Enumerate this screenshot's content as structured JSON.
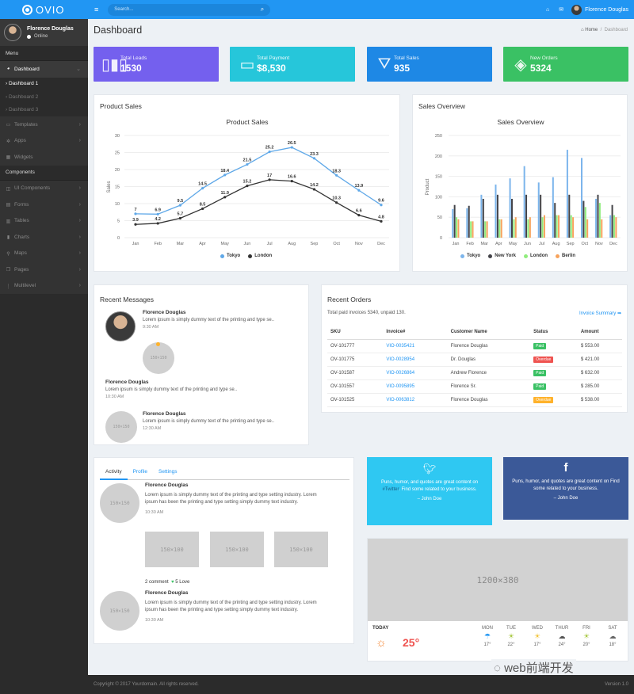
{
  "app": {
    "name": "OVIO"
  },
  "user": {
    "name": "Florence Douglas",
    "status": "Online"
  },
  "sidebar": {
    "menu_label": "Menu",
    "dashboard": "Dashboard",
    "subs": [
      "Dashboard 1",
      "Dashboard 2",
      "Dashboard 3"
    ],
    "items1": [
      "Templates",
      "Apps",
      "Widgets"
    ],
    "components_label": "Components",
    "items2": [
      "UI Components",
      "Forms",
      "Tables",
      "Charts",
      "Maps",
      "Pages",
      "Multilevel"
    ]
  },
  "topbar": {
    "search_placeholder": "Search...",
    "user": "Florence Douglas"
  },
  "page": {
    "title": "Dashboard",
    "crumb_home": "Home",
    "crumb_current": "Dashboard"
  },
  "stats": [
    {
      "label": "Total Leads",
      "value": "1530",
      "color": "#7460ee"
    },
    {
      "label": "Total Payment",
      "value": "$8,530",
      "color": "#26c6da"
    },
    {
      "label": "Total Sales",
      "value": "935",
      "color": "#1e88e5"
    },
    {
      "label": "New Orders",
      "value": "5324",
      "color": "#3ac164"
    }
  ],
  "product_sales": {
    "card_title": "Product Sales"
  },
  "sales_overview": {
    "card_title": "Sales Overview"
  },
  "chart_data": [
    {
      "type": "line",
      "title": "Product Sales",
      "ylabel": "Sales",
      "categories": [
        "Jan",
        "Feb",
        "Mar",
        "Apr",
        "May",
        "Jun",
        "Jul",
        "Aug",
        "Sep",
        "Oct",
        "Nov",
        "Dec"
      ],
      "ylim": [
        0,
        30
      ],
      "yticks": [
        "0",
        "5",
        "10",
        "15",
        "20",
        "25",
        "30"
      ],
      "series": [
        {
          "name": "Tokyo",
          "color": "#5fa8e8",
          "values": [
            7,
            6.9,
            9.5,
            14.5,
            18.4,
            21.5,
            25.2,
            26.5,
            23.3,
            18.3,
            13.9,
            9.6
          ],
          "labels": [
            "7",
            "6.9",
            "9.5",
            "14.5",
            "18.4",
            "21.5",
            "25.2",
            "26.5",
            "23.3",
            "18.3",
            "13.9",
            "9.6"
          ]
        },
        {
          "name": "London",
          "color": "#333333",
          "values": [
            3.9,
            4.2,
            5.7,
            8.5,
            11.9,
            15.2,
            17,
            16.6,
            14.2,
            10.3,
            6.6,
            4.8
          ],
          "labels": [
            "3.9",
            "4.2",
            "5.7",
            "8.5",
            "11.9",
            "15.2",
            "17",
            "16.6",
            "14.2",
            "10.3",
            "6.6",
            "4.8"
          ]
        }
      ]
    },
    {
      "type": "bar",
      "title": "Sales Overview",
      "ylabel": "Product",
      "categories": [
        "Jan",
        "Feb",
        "Mar",
        "Apr",
        "May",
        "Jun",
        "Jul",
        "Aug",
        "Sep",
        "Oct",
        "Nov",
        "Dec"
      ],
      "ylim": [
        0,
        250
      ],
      "yticks": [
        "0",
        "50",
        "100",
        "150",
        "200",
        "250"
      ],
      "series": [
        {
          "name": "Tokyo",
          "color": "#7cb5ec",
          "values": [
            70,
            72,
            105,
            130,
            145,
            175,
            135,
            148,
            215,
            195,
            95,
            55
          ]
        },
        {
          "name": "New York",
          "color": "#434348",
          "values": [
            80,
            78,
            95,
            105,
            95,
            105,
            105,
            85,
            105,
            90,
            105,
            80
          ]
        },
        {
          "name": "London",
          "color": "#90ed7d",
          "values": [
            50,
            40,
            40,
            45,
            45,
            45,
            50,
            55,
            55,
            75,
            85,
            55
          ]
        },
        {
          "name": "Berlin",
          "color": "#f7a35c",
          "values": [
            45,
            40,
            40,
            45,
            50,
            50,
            55,
            55,
            50,
            45,
            45,
            50
          ]
        }
      ]
    }
  ],
  "recent_messages": {
    "title": "Recent Messages",
    "items": [
      {
        "name": "Florence Douglas",
        "text": "Lorem ipsum is simply dummy text of the printing and type se..",
        "time": "9:30 AM"
      },
      {
        "name": "Florence Douglas",
        "text": "Lorem ipsum is simply dummy text of the printing and type se..",
        "time": "10:30 AM"
      },
      {
        "name": "Florence Douglas",
        "text": "Lorem ipsum is simply dummy text of the printing and type se..",
        "time": "12:30 AM"
      }
    ],
    "placeholder": "150×150"
  },
  "recent_orders": {
    "title": "Recent Orders",
    "subtitle": "Total paid invoices 5340, unpaid 130.",
    "summary_link": "Invoice Summary ➡",
    "headers": [
      "SKU",
      "Invoice#",
      "Customer Name",
      "Status",
      "Amount"
    ],
    "rows": [
      {
        "sku": "OV-101777",
        "inv": "VIO-0035421",
        "name": "Florence Douglas",
        "status": "Paid",
        "status_color": "#3ac164",
        "amount": "$ 553.00"
      },
      {
        "sku": "OV-101775",
        "inv": "VIO-0028954",
        "name": "Dr. Douglas",
        "status": "Overdue",
        "status_color": "#ef5350",
        "amount": "$ 421.00"
      },
      {
        "sku": "OV-101587",
        "inv": "VIO-0026864",
        "name": "Andrew Florence",
        "status": "Paid",
        "status_color": "#3ac164",
        "amount": "$ 632.00"
      },
      {
        "sku": "OV-101557",
        "inv": "VIO-0095895",
        "name": "Florence Sr.",
        "status": "Paid",
        "status_color": "#3ac164",
        "amount": "$ 285.00"
      },
      {
        "sku": "OV-101525",
        "inv": "VIO-0063812",
        "name": "Florence Douglas",
        "status": "Overdue",
        "status_color": "#ffb22b",
        "amount": "$ 538.00"
      }
    ]
  },
  "activity": {
    "tabs": [
      "Activity",
      "Profile",
      "Settings"
    ],
    "items": [
      {
        "name": "Florence Douglas",
        "text": "Lorem ipsum is simply dummy text of the printing and type setting industry. Lorem ipsum has been the printing and type setting simply dummy text industry.",
        "time": "10:30 AM"
      },
      {
        "name": "Florence Douglas",
        "text": "Lorem ipsum is simply dummy text of the printing and type setting industry. Lorem ipsum has been the printing and type setting simply dummy text industry.",
        "time": "10:30 AM"
      }
    ],
    "thumb": "150×100",
    "comments": "2 comment",
    "loves": "5 Love"
  },
  "twitter": {
    "text_before": "Puns, humor, and quotes are great content on ",
    "handle": "#Twitter",
    "text_after": ". Find some related to your business.",
    "author": "– John Doe",
    "color": "#2fc8f2"
  },
  "facebook": {
    "text": "Puns, humor, and quotes are great content on Find some related to your business.",
    "author": "– John Doe",
    "color": "#3b5998"
  },
  "weather": {
    "image_placeholder": "1200×380",
    "today": "TODAY",
    "temp": "25°",
    "days": [
      {
        "d": "MON",
        "t": "17°"
      },
      {
        "d": "TUE",
        "t": "22°"
      },
      {
        "d": "WED",
        "t": "17°"
      },
      {
        "d": "THUR",
        "t": "24°"
      },
      {
        "d": "FRI",
        "t": "20°"
      },
      {
        "d": "SAT",
        "t": "18°"
      }
    ]
  },
  "footer": {
    "copyright": "Copyright © 2017 Yourdomain. All rights reserved.",
    "version": "Version 1.0"
  },
  "watermark": "web前端开发"
}
